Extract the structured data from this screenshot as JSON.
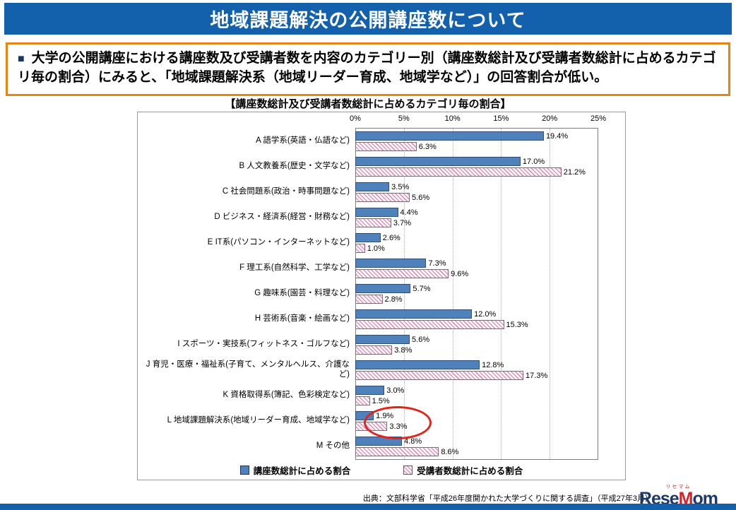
{
  "header": {
    "title": "地域課題解決の公開講座数について"
  },
  "callout": {
    "bullet": "■",
    "text": "大学の公開講座における講座数及び受講者数を内容のカテゴリー別（講座数総計及び受講者数総計に占めるカテゴリ毎の割合）にみると、「地域課題解決系（地域リーダー育成、地域学など）」の回答割合が低い。"
  },
  "chart_data": {
    "type": "bar",
    "orientation": "horizontal",
    "title": "【講座数総計及び受講者数総計に占めるカテゴリ毎の割合】",
    "categories": [
      "A 語学系(英語・仏語など)",
      "B 人文教養系(歴史・文学など)",
      "C 社会問題系(政治・時事問題など)",
      "D ビジネス・経済系(経営・財務など)",
      "E IT系(パソコン・インターネットなど)",
      "F 理工系(自然科学、工学など)",
      "G 趣味系(園芸・料理など)",
      "H 芸術系(音楽・絵画など)",
      "I スポーツ・実技系(フィットネス・ゴルフなど)",
      "J 育児・医療・福祉系(子育て、メンタルヘルス、介護など)",
      "K 資格取得系(簿記、色彩検定など)",
      "L 地域課題解決系(地域リーダー育成、地域学など)",
      "M その他"
    ],
    "series": [
      {
        "name": "講座数総計に占める割合",
        "color": "#4F81BD",
        "style": "solid",
        "values": [
          19.4,
          17.0,
          3.5,
          4.4,
          2.6,
          7.3,
          5.7,
          12.0,
          5.6,
          12.8,
          3.0,
          1.9,
          4.8
        ]
      },
      {
        "name": "受講者数総計に占める割合",
        "color": "#E090B8",
        "style": "hatched",
        "values": [
          6.3,
          21.2,
          5.6,
          3.7,
          1.0,
          9.6,
          2.8,
          15.3,
          3.8,
          17.3,
          1.5,
          3.3,
          8.6
        ]
      }
    ],
    "xlim": [
      0,
      25
    ],
    "tick_labels": [
      "0%",
      "5%",
      "10%",
      "15%",
      "20%",
      "25%"
    ],
    "grid": "vertical-dotted",
    "legend_position": "bottom",
    "highlight": {
      "category_index": 11,
      "style": "red-ellipse"
    }
  },
  "source": {
    "text": "出典：文部科学省「平成26年度開かれた大学づくりに関する調査」（平成27年3月）"
  },
  "logo": {
    "kana": "リセマム",
    "part1": "Rese",
    "part2": "M",
    "part3": "om"
  },
  "colors": {
    "header_blue": "#1360AC",
    "callout_orange": "#E8850E",
    "bar_blue": "#4F81BD",
    "bar_pink": "#E090B8",
    "highlight_red": "#E2231A"
  }
}
